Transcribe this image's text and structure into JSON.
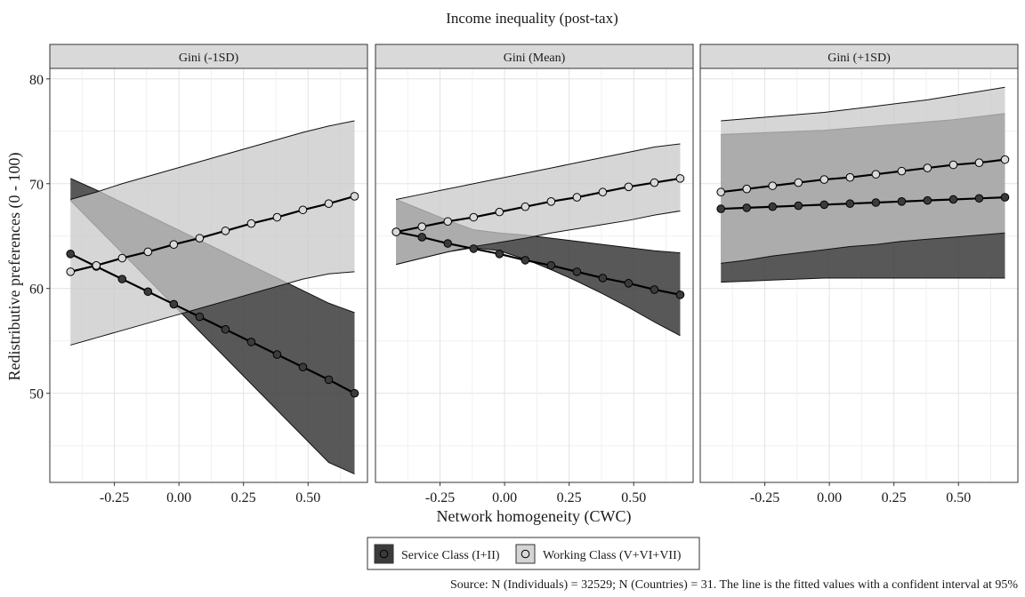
{
  "chart_data": {
    "type": "line",
    "title": "Income inequality (post-tax)",
    "xlabel": "Network homogeneity (CWC)",
    "ylabel": "Redistributive preferences (0 - 100)",
    "caption": "Source: N (Individuals) = 32529; N (Countries) = 31. The line is the fitted values with a confident interval at 95%",
    "xlim": [
      -0.5,
      0.73
    ],
    "ylim": [
      41.5,
      81
    ],
    "x_ticks": [
      -0.25,
      0.0,
      0.25,
      0.5
    ],
    "x_tick_labels": [
      "-0.25",
      "0.00",
      "0.25",
      "0.50"
    ],
    "y_ticks": [
      50,
      60,
      70,
      80
    ],
    "y_tick_labels": [
      "50",
      "60",
      "70",
      "80"
    ],
    "grid": true,
    "legend": {
      "position": "bottom",
      "entries": [
        {
          "label": "Service Class (I+II)",
          "color": "#3b3b3b"
        },
        {
          "label": "Working Class (V+VI+VII)",
          "color": "#d4d4d4"
        }
      ]
    },
    "x": [
      -0.42,
      -0.32,
      -0.22,
      -0.12,
      -0.02,
      0.08,
      0.18,
      0.28,
      0.38,
      0.48,
      0.58,
      0.68
    ],
    "panels": [
      {
        "title": "Gini (-1SD)",
        "series": [
          {
            "name": "Service Class (I+II)",
            "fit": [
              63.3,
              62.1,
              60.9,
              59.7,
              58.5,
              57.3,
              56.1,
              54.9,
              53.7,
              52.5,
              51.3,
              50.0
            ],
            "lower": [
              68.4,
              65.9,
              63.4,
              60.9,
              58.4,
              55.9,
              53.4,
              50.9,
              48.4,
              45.9,
              43.4,
              42.3
            ],
            "upper": [
              70.5,
              69.4,
              68.2,
              67.0,
              65.8,
              64.6,
              63.4,
              62.2,
              61.0,
              59.8,
              58.6,
              57.7
            ]
          },
          {
            "name": "Working Class (V+VI+VII)",
            "fit": [
              61.6,
              62.2,
              62.9,
              63.5,
              64.2,
              64.8,
              65.5,
              66.2,
              66.8,
              67.5,
              68.1,
              68.8
            ],
            "lower": [
              54.6,
              55.3,
              56.0,
              56.7,
              57.4,
              58.1,
              58.8,
              59.5,
              60.2,
              60.9,
              61.4,
              61.6
            ],
            "upper": [
              68.5,
              69.2,
              70.0,
              70.7,
              71.4,
              72.1,
              72.8,
              73.5,
              74.2,
              74.9,
              75.5,
              76.0
            ]
          }
        ]
      },
      {
        "title": "Gini (Mean)",
        "series": [
          {
            "name": "Service Class (I+II)",
            "fit": [
              65.4,
              64.9,
              64.3,
              63.8,
              63.3,
              62.7,
              62.2,
              61.6,
              61.0,
              60.5,
              59.9,
              59.4
            ],
            "lower": [
              62.3,
              62.9,
              63.5,
              63.9,
              63.6,
              62.8,
              61.8,
              60.7,
              59.5,
              58.2,
              56.8,
              55.5
            ],
            "upper": [
              68.5,
              67.5,
              66.5,
              65.6,
              65.3,
              65.1,
              64.8,
              64.5,
              64.2,
              63.9,
              63.6,
              63.4
            ]
          },
          {
            "name": "Working Class (V+VI+VII)",
            "fit": [
              65.4,
              65.9,
              66.4,
              66.8,
              67.3,
              67.8,
              68.3,
              68.7,
              69.2,
              69.7,
              70.1,
              70.5
            ],
            "lower": [
              62.3,
              62.9,
              63.5,
              64.0,
              64.4,
              64.8,
              65.3,
              65.7,
              66.1,
              66.5,
              67.0,
              67.4
            ],
            "upper": [
              68.5,
              69.0,
              69.5,
              70.0,
              70.5,
              71.0,
              71.5,
              72.0,
              72.5,
              73.0,
              73.5,
              73.8
            ]
          }
        ]
      },
      {
        "title": "Gini (+1SD)",
        "series": [
          {
            "name": "Service Class (I+II)",
            "fit": [
              67.6,
              67.7,
              67.8,
              67.9,
              68.0,
              68.1,
              68.2,
              68.3,
              68.4,
              68.5,
              68.6,
              68.7
            ],
            "lower": [
              60.6,
              60.7,
              60.8,
              60.9,
              61.0,
              61.0,
              61.0,
              61.0,
              61.0,
              61.0,
              61.0,
              61.0
            ],
            "upper": [
              74.7,
              74.8,
              74.9,
              75.0,
              75.1,
              75.3,
              75.5,
              75.7,
              75.9,
              76.1,
              76.4,
              76.7
            ]
          },
          {
            "name": "Working Class (V+VI+VII)",
            "fit": [
              69.2,
              69.5,
              69.8,
              70.1,
              70.4,
              70.6,
              70.9,
              71.2,
              71.5,
              71.8,
              72.0,
              72.3
            ],
            "lower": [
              62.4,
              62.7,
              63.1,
              63.4,
              63.7,
              64.0,
              64.2,
              64.5,
              64.7,
              64.9,
              65.1,
              65.3
            ],
            "upper": [
              76.0,
              76.2,
              76.4,
              76.6,
              76.8,
              77.1,
              77.4,
              77.7,
              78.0,
              78.4,
              78.8,
              79.2
            ]
          }
        ]
      }
    ]
  }
}
